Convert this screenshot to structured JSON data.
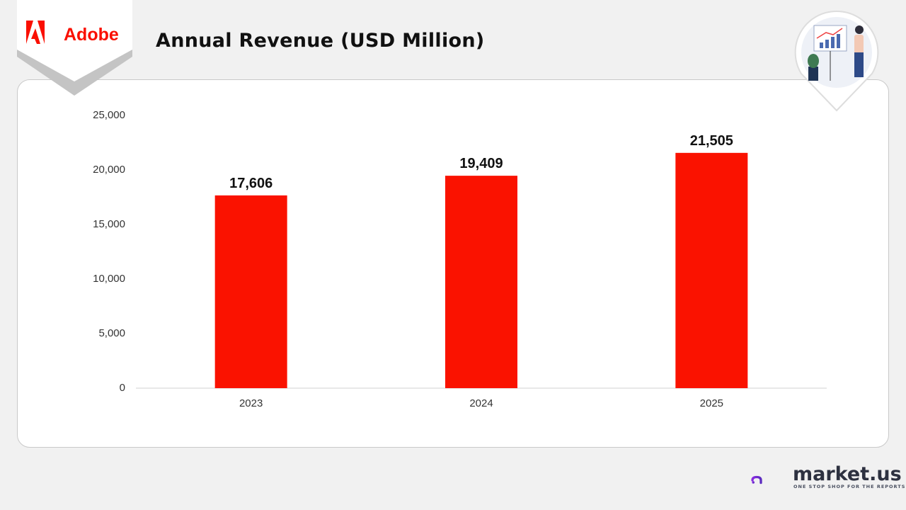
{
  "brand": {
    "company": "Adobe",
    "brand_color": "#fa0f00"
  },
  "header": {
    "title": "Annual Revenue (USD Million)"
  },
  "footer": {
    "logo_text": "market.",
    "logo_text_suffix": "us",
    "tagline": "ONE STOP SHOP FOR THE REPORTS"
  },
  "chart_data": {
    "type": "bar",
    "title": "Annual Revenue (USD Million)",
    "categories": [
      "2023",
      "2024",
      "2025"
    ],
    "values": [
      17606,
      19409,
      21505
    ],
    "data_labels": [
      "17,606",
      "19,409",
      "21,505"
    ],
    "ylim": [
      0,
      25000
    ],
    "yticks": [
      0,
      5000,
      10000,
      15000,
      20000,
      25000
    ],
    "ytick_labels": [
      "0",
      "5,000",
      "10,000",
      "15,000",
      "20,000",
      "25,000"
    ],
    "grid": false,
    "bar_color": "#fa1200",
    "xlabel": "",
    "ylabel": ""
  }
}
